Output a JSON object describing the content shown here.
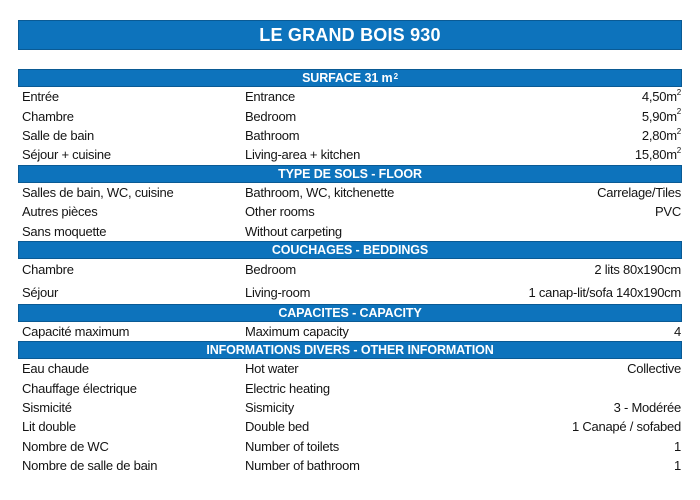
{
  "page": {
    "accent_color": "#0d73bc",
    "accent_border_color": "#0a5a94",
    "background_color": "#ffffff",
    "title": "LE GRAND BOIS 930"
  },
  "table": {
    "sections": [
      {
        "header": "SURFACE 31 m",
        "header_sup": "2",
        "rows": [
          {
            "fr": "Entrée",
            "en": "Entrance",
            "value": "4,50m",
            "value_sup": "2"
          },
          {
            "fr": "Chambre",
            "en": "Bedroom",
            "value": "5,90m",
            "value_sup": "2"
          },
          {
            "fr": "Salle de bain",
            "en": "Bathroom",
            "value": "2,80m",
            "value_sup": "2"
          },
          {
            "fr": "Séjour + cuisine",
            "en": "Living-area + kitchen",
            "value": "15,80m",
            "value_sup": "2"
          }
        ]
      },
      {
        "header": "TYPE DE SOLS - FLOOR",
        "rows": [
          {
            "fr": "Salles de bain, WC, cuisine",
            "en": "Bathroom, WC, kitchenette",
            "value": "Carrelage/Tiles"
          },
          {
            "fr": "Autres pièces",
            "en": "Other rooms",
            "value": "PVC"
          },
          {
            "fr": "Sans moquette",
            "en": "Without carpeting",
            "value": ""
          }
        ]
      },
      {
        "header": "COUCHAGES - BEDDINGS",
        "spacious": true,
        "rows": [
          {
            "fr": "Chambre",
            "en": "Bedroom",
            "value": "2 lits 80x190cm"
          },
          {
            "fr": "Séjour",
            "en": "Living-room",
            "value": "1 canap-lit/sofa 140x190cm"
          }
        ]
      },
      {
        "header": "CAPACITES - CAPACITY",
        "rows": [
          {
            "fr": "Capacité maximum",
            "en": "Maximum capacity",
            "value": "4"
          }
        ]
      },
      {
        "header": "INFORMATIONS DIVERS - OTHER INFORMATION",
        "rows": [
          {
            "fr": "Eau chaude",
            "en": "Hot water",
            "value": "Collective"
          },
          {
            "fr": "Chauffage électrique",
            "en": "Electric heating",
            "value": ""
          },
          {
            "fr": "Sismicité",
            "en": "Sismicity",
            "value": "3 - Modérée"
          },
          {
            "fr": "Lit double",
            "en": "Double bed",
            "value": "1 Canapé / sofabed"
          },
          {
            "fr": "Nombre de WC",
            "en": "Number of toilets",
            "value": "1"
          },
          {
            "fr": "Nombre de salle de bain",
            "en": "Number of bathroom",
            "value": "1"
          }
        ]
      }
    ]
  }
}
